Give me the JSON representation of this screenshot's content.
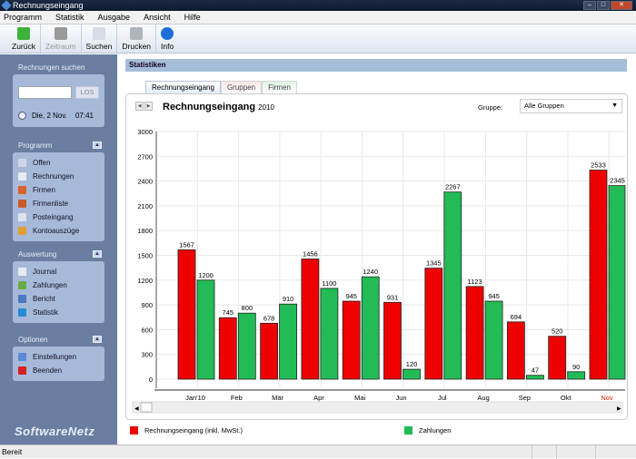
{
  "window": {
    "title": "Rechnungseingang"
  },
  "menu": [
    "Programm",
    "Statistik",
    "Ausgabe",
    "Ansicht",
    "Hilfe"
  ],
  "toolbar": [
    {
      "label": "Zurück",
      "icon": "back-arrow-icon",
      "color": "#3cb43c",
      "enabled": true
    },
    {
      "label": "Zeitraum",
      "icon": "calendar-icon",
      "color": "#9a9a9a",
      "enabled": false
    },
    {
      "label": "Suchen",
      "icon": "search-document-icon",
      "color": "#d8dce8",
      "enabled": true
    },
    {
      "label": "Drucken",
      "icon": "printer-icon",
      "color": "#b0b4bc",
      "enabled": true
    },
    {
      "label": "Info",
      "icon": "info-icon",
      "color": "#1e6fd8",
      "enabled": true
    }
  ],
  "sidebar": {
    "search": {
      "title": "Rechnungen suchen",
      "button": "LOS",
      "input_value": "",
      "date": "Die, 2 Nov.",
      "time": "07:41"
    },
    "groups": [
      {
        "title": "Programm",
        "items": [
          {
            "label": "Offen",
            "color": "#cfd6e4"
          },
          {
            "label": "Rechnungen",
            "color": "#e6eaf2"
          },
          {
            "label": "Firmen",
            "color": "#d9622a"
          },
          {
            "label": "Firmenliste",
            "color": "#c85a2a"
          },
          {
            "label": "Posteingang",
            "color": "#dde3ee"
          },
          {
            "label": "Kontoauszüge",
            "color": "#e0a030"
          }
        ]
      },
      {
        "title": "Auswertung",
        "items": [
          {
            "label": "Journal",
            "color": "#e6eaf2"
          },
          {
            "label": "Zahlungen",
            "color": "#6aaa44"
          },
          {
            "label": "Bericht",
            "color": "#4a7ac0"
          },
          {
            "label": "Statistik",
            "color": "#2a8ad8"
          }
        ]
      },
      {
        "title": "Optionen",
        "items": [
          {
            "label": "Einstellungen",
            "color": "#5a8ad8"
          },
          {
            "label": "Beenden",
            "color": "#d82020"
          }
        ]
      }
    ],
    "logo": "SoftwareNetz"
  },
  "main": {
    "header": "Statistiken",
    "tabs": [
      "Rechnungseingang",
      "Gruppen",
      "Firmen"
    ],
    "chart_title": "Rechnungseingang",
    "year": "2010",
    "group_label": "Gruppe:",
    "group_value": "Alle Gruppen"
  },
  "chart_data": {
    "type": "bar",
    "title": "Rechnungseingang 2010",
    "categories": [
      "Jan'10",
      "Feb",
      "Mär",
      "Apr",
      "Mai",
      "Jun",
      "Jul",
      "Aug",
      "Sep",
      "Okt",
      "Nov"
    ],
    "highlight_category": "Nov",
    "ylim": [
      0,
      3000
    ],
    "yticks": [
      0,
      300,
      600,
      900,
      1200,
      1500,
      1800,
      2100,
      2400,
      2700,
      3000
    ],
    "grid": true,
    "legend_position": "bottom",
    "series": [
      {
        "name": "Rechnungseingang (inkl. MwSt.)",
        "color": "#ee0000",
        "values": [
          1567,
          745,
          678,
          1456,
          945,
          931,
          1345,
          1123,
          694,
          520,
          2533
        ]
      },
      {
        "name": "Zahlungen",
        "color": "#22bb55",
        "values": [
          1200,
          800,
          910,
          1100,
          1240,
          120,
          2267,
          945,
          47,
          90,
          2345
        ]
      }
    ]
  },
  "status": {
    "text": "Bereit"
  }
}
